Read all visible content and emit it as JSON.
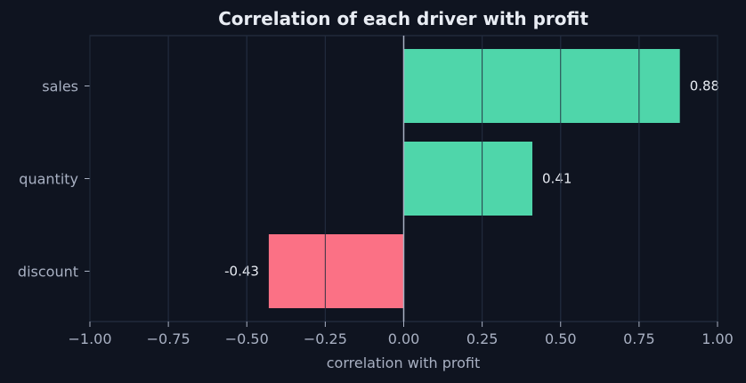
{
  "chart_data": {
    "type": "bar",
    "orientation": "horizontal",
    "title": "Correlation of each driver with profit",
    "xlabel": "correlation with profit",
    "ylabel": "",
    "categories": [
      "sales",
      "quantity",
      "discount"
    ],
    "values": [
      0.88,
      0.41,
      -0.43
    ],
    "value_labels": [
      "0.88",
      "0.41",
      "-0.43"
    ],
    "xlim": [
      -1.0,
      1.0
    ],
    "xticks": [
      -1.0,
      -0.75,
      -0.5,
      -0.25,
      0.0,
      0.25,
      0.5,
      0.75,
      1.0
    ],
    "xtick_labels": [
      "−1.00",
      "−0.75",
      "−0.50",
      "−0.25",
      "0.00",
      "0.25",
      "0.50",
      "0.75",
      "1.00"
    ],
    "grid": "vertical",
    "colors": {
      "positive": "#4fd6aa",
      "negative": "#fb7185",
      "background": "#0f1420",
      "grid": "#2a3347",
      "zero_line": "#a8b0c2",
      "text": "#e8ecf3",
      "muted_text": "#a8b0c2"
    }
  }
}
